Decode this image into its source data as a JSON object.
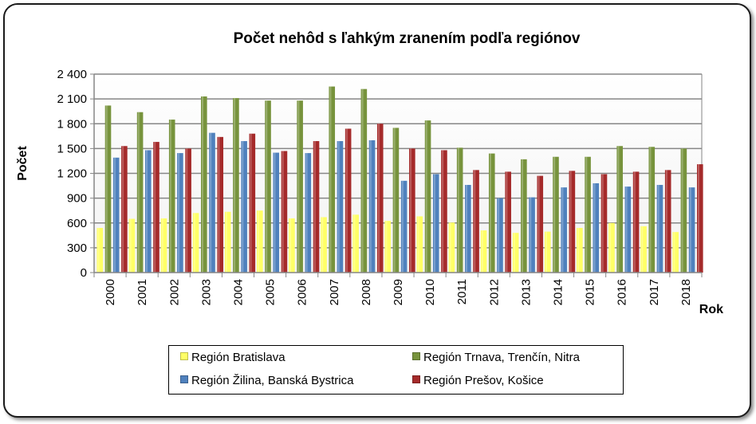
{
  "chart_data": {
    "type": "bar",
    "title": "Počet nehôd s ľahkým zranením podľa regiónov",
    "xlabel": "Rok",
    "ylabel": "Počet",
    "ylim": [
      0,
      2400
    ],
    "yticks": [
      "0",
      "300",
      "600",
      "900",
      "1 200",
      "1 500",
      "1 800",
      "2 100",
      "2 400"
    ],
    "grid": true,
    "legend_position": "bottom",
    "categories": [
      "2000",
      "2001",
      "2002",
      "2003",
      "2004",
      "2005",
      "2006",
      "2007",
      "2008",
      "2009",
      "2010",
      "2011",
      "2012",
      "2013",
      "2014",
      "2015",
      "2016",
      "2017",
      "2018"
    ],
    "series": [
      {
        "name": "Región Bratislava",
        "color": "#ffff66",
        "values": [
          540,
          650,
          655,
          720,
          735,
          750,
          655,
          670,
          700,
          625,
          680,
          605,
          510,
          480,
          495,
          540,
          600,
          560,
          490
        ]
      },
      {
        "name": "Región Trnava, Trenčín, Nitra",
        "color": "#77933c",
        "values": [
          2020,
          1940,
          1850,
          2130,
          2110,
          2080,
          2080,
          2250,
          2220,
          1750,
          1840,
          1510,
          1440,
          1370,
          1400,
          1400,
          1530,
          1520,
          1500
        ]
      },
      {
        "name": "Región Žilina, Banská Bystrica",
        "color": "#4f81bd",
        "values": [
          1390,
          1480,
          1445,
          1690,
          1590,
          1450,
          1445,
          1590,
          1600,
          1110,
          1190,
          1060,
          900,
          910,
          1030,
          1080,
          1040,
          1060,
          1030
        ]
      },
      {
        "name": "Región Prešov, Košice",
        "color": "#a52a2a",
        "values": [
          1530,
          1580,
          1500,
          1640,
          1680,
          1470,
          1590,
          1740,
          1800,
          1500,
          1480,
          1240,
          1220,
          1170,
          1230,
          1190,
          1220,
          1240,
          1310
        ]
      }
    ]
  }
}
